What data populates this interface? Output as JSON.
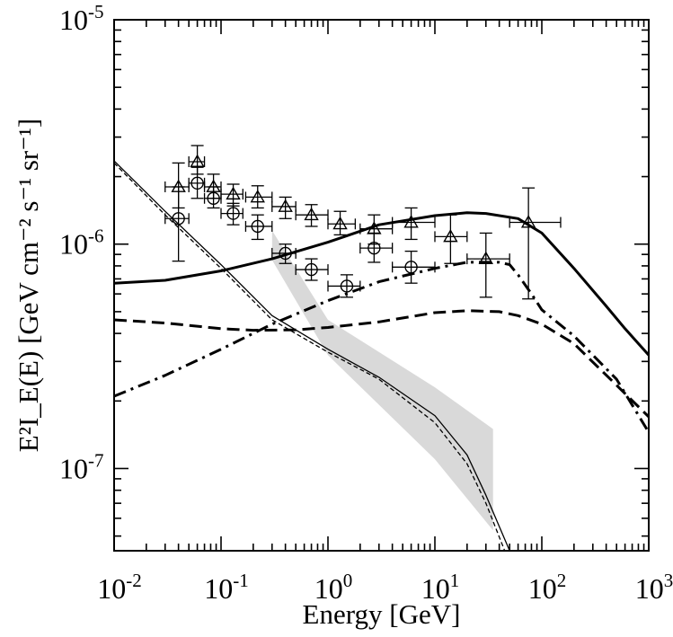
{
  "chart_data": {
    "type": "line",
    "title": "",
    "xlabel": "Energy [GeV]",
    "ylabel": "E²I_E(E) [GeV cm⁻² s⁻¹ sr⁻¹]",
    "xscale": "log",
    "yscale": "log",
    "xlim": [
      0.01,
      1000
    ],
    "ylim": [
      4.3e-08,
      1e-05
    ],
    "grid": false,
    "x_tick_labels": [
      {
        "base": "10",
        "exp": "-2",
        "value": 0.01
      },
      {
        "base": "10",
        "exp": "-1",
        "value": 0.1
      },
      {
        "base": "10",
        "exp": "0",
        "value": 1
      },
      {
        "base": "10",
        "exp": "1",
        "value": 10
      },
      {
        "base": "10",
        "exp": "2",
        "value": 100
      },
      {
        "base": "10",
        "exp": "3",
        "value": 1000
      }
    ],
    "y_tick_labels": [
      {
        "base": "10",
        "exp": "-7",
        "value": 1e-07
      },
      {
        "base": "10",
        "exp": "-6",
        "value": 1e-06
      },
      {
        "base": "10",
        "exp": "-5",
        "value": 1e-05
      }
    ],
    "series": [
      {
        "name": "thick-solid",
        "style": "solid",
        "width": 3,
        "x": [
          0.01,
          0.03,
          0.1,
          0.3,
          1,
          3,
          10,
          20,
          30,
          60,
          100,
          200,
          400,
          600,
          1000
        ],
        "y": [
          6.7e-07,
          6.9e-07,
          7.6e-07,
          8.6e-07,
          1.02e-06,
          1.22e-06,
          1.34e-06,
          1.38e-06,
          1.37e-06,
          1.3e-06,
          1.12e-06,
          7.8e-07,
          5.3e-07,
          4.2e-07,
          3.2e-07
        ]
      },
      {
        "name": "thick-dashed",
        "style": "dashed",
        "width": 3,
        "x": [
          0.01,
          0.03,
          0.1,
          0.2,
          0.5,
          1,
          3,
          10,
          20,
          40,
          60,
          100,
          200,
          500,
          1000
        ],
        "y": [
          4.6e-07,
          4.45e-07,
          4.2e-07,
          4.13e-07,
          4.15e-07,
          4.25e-07,
          4.5e-07,
          4.95e-07,
          5.05e-07,
          5e-07,
          4.8e-07,
          4.4e-07,
          3.6e-07,
          2.35e-07,
          1.7e-07
        ]
      },
      {
        "name": "thick-dash-dot",
        "style": "dashdot",
        "width": 3,
        "x": [
          0.01,
          0.03,
          0.1,
          0.3,
          1,
          3,
          10,
          20,
          40,
          50,
          60,
          80,
          100,
          200,
          500,
          1000
        ],
        "y": [
          2.1e-07,
          2.6e-07,
          3.4e-07,
          4.4e-07,
          5.6e-07,
          6.8e-07,
          7.8e-07,
          8.3e-07,
          8.3e-07,
          8.1e-07,
          7.3e-07,
          6e-07,
          5.1e-07,
          3.9e-07,
          2.5e-07,
          1.45e-07
        ]
      },
      {
        "name": "thin-solid",
        "style": "solid",
        "width": 1.3,
        "x": [
          0.01,
          0.03,
          0.1,
          0.3,
          1,
          3,
          10,
          20,
          30,
          50
        ],
        "y": [
          2.35e-06,
          1.4e-06,
          8.1e-07,
          4.8e-07,
          3.4e-07,
          2.55e-07,
          1.72e-07,
          1.15e-07,
          7.6e-08,
          4.3e-08
        ]
      },
      {
        "name": "thin-dashed",
        "style": "dashed-thin",
        "width": 1.3,
        "x": [
          0.01,
          0.03,
          0.1,
          0.3,
          1,
          3,
          10,
          20,
          30,
          45
        ],
        "y": [
          2.3e-06,
          1.35e-06,
          7.8e-07,
          4.6e-07,
          3.3e-07,
          2.5e-07,
          1.6e-07,
          1.05e-07,
          7e-08,
          4.3e-08
        ]
      }
    ],
    "band": {
      "name": "shaded-band",
      "x": [
        0.3,
        1,
        10,
        35
      ],
      "upper": [
        1.15e-06,
        4.6e-07,
        2.3e-07,
        1.5e-07
      ],
      "lower": [
        8.5e-07,
        3.2e-07,
        1.1e-07,
        5.3e-08
      ]
    },
    "triangles": {
      "name": "triangle-data",
      "points": [
        {
          "x": 0.04,
          "y": 1.8e-06,
          "xerr": [
            0.03,
            0.05
          ],
          "yerr": [
            1.45e-06,
            2.3e-06
          ]
        },
        {
          "x": 0.06,
          "y": 2.33e-06,
          "xerr": [
            0.05,
            0.07
          ],
          "yerr": [
            2.05e-06,
            2.75e-06
          ]
        },
        {
          "x": 0.085,
          "y": 1.8e-06,
          "xerr": [
            0.07,
            0.1
          ],
          "yerr": [
            1.6e-06,
            2.05e-06
          ]
        },
        {
          "x": 0.13,
          "y": 1.67e-06,
          "xerr": [
            0.1,
            0.16
          ],
          "yerr": [
            1.48e-06,
            1.85e-06
          ]
        },
        {
          "x": 0.22,
          "y": 1.62e-06,
          "xerr": [
            0.17,
            0.3
          ],
          "yerr": [
            1.45e-06,
            1.82e-06
          ]
        },
        {
          "x": 0.4,
          "y": 1.47e-06,
          "xerr": [
            0.3,
            0.5
          ],
          "yerr": [
            1.3e-06,
            1.62e-06
          ]
        },
        {
          "x": 0.7,
          "y": 1.35e-06,
          "xerr": [
            0.5,
            1.0
          ],
          "yerr": [
            1.2e-06,
            1.5e-06
          ]
        },
        {
          "x": 1.3,
          "y": 1.23e-06,
          "xerr": [
            1.0,
            1.8
          ],
          "yerr": [
            1.1e-06,
            1.4e-06
          ]
        },
        {
          "x": 2.7,
          "y": 1.17e-06,
          "xerr": [
            2.0,
            4.0
          ],
          "yerr": [
            1e-06,
            1.35e-06
          ]
        },
        {
          "x": 6.0,
          "y": 1.25e-06,
          "xerr": [
            4.0,
            10.0
          ],
          "yerr": [
            1.05e-06,
            1.45e-06
          ]
        },
        {
          "x": 14.0,
          "y": 1.08e-06,
          "xerr": [
            10.0,
            20.0
          ],
          "yerr": [
            8.2e-07,
            1.35e-06
          ]
        },
        {
          "x": 30.0,
          "y": 8.6e-07,
          "xerr": [
            20.0,
            50.0
          ],
          "yerr": [
            5.8e-07,
            1.12e-06
          ]
        },
        {
          "x": 75.0,
          "y": 1.25e-06,
          "xerr": [
            50.0,
            150.0
          ],
          "yerr": [
            5.7e-07,
            1.78e-06
          ]
        }
      ]
    },
    "circles": {
      "name": "circle-data",
      "points": [
        {
          "x": 0.04,
          "y": 1.3e-06,
          "xerr": [
            0.03,
            0.05
          ],
          "yerr": [
            8.4e-07,
            1.8e-06
          ]
        },
        {
          "x": 0.06,
          "y": 1.87e-06,
          "xerr": [
            0.05,
            0.07
          ],
          "yerr": [
            1.6e-06,
            2.2e-06
          ]
        },
        {
          "x": 0.085,
          "y": 1.6e-06,
          "xerr": [
            0.07,
            0.1
          ],
          "yerr": [
            1.45e-06,
            1.8e-06
          ]
        },
        {
          "x": 0.13,
          "y": 1.37e-06,
          "xerr": [
            0.1,
            0.16
          ],
          "yerr": [
            1.22e-06,
            1.52e-06
          ]
        },
        {
          "x": 0.22,
          "y": 1.2e-06,
          "xerr": [
            0.17,
            0.3
          ],
          "yerr": [
            1.05e-06,
            1.35e-06
          ]
        },
        {
          "x": 0.4,
          "y": 9.1e-07,
          "xerr": [
            0.3,
            0.5
          ],
          "yerr": [
            8.2e-07,
            1e-06
          ]
        },
        {
          "x": 0.7,
          "y": 7.7e-07,
          "xerr": [
            0.5,
            1.0
          ],
          "yerr": [
            6.9e-07,
            8.6e-07
          ]
        },
        {
          "x": 1.5,
          "y": 6.5e-07,
          "xerr": [
            1.0,
            2.0
          ],
          "yerr": [
            5.8e-07,
            7.3e-07
          ]
        },
        {
          "x": 2.7,
          "y": 9.6e-07,
          "xerr": [
            2.0,
            4.0
          ],
          "yerr": [
            8.3e-07,
            1.12e-06
          ]
        },
        {
          "x": 6.0,
          "y": 7.9e-07,
          "xerr": [
            4.0,
            10.0
          ],
          "yerr": [
            6.7e-07,
            9.3e-07
          ]
        }
      ]
    }
  }
}
